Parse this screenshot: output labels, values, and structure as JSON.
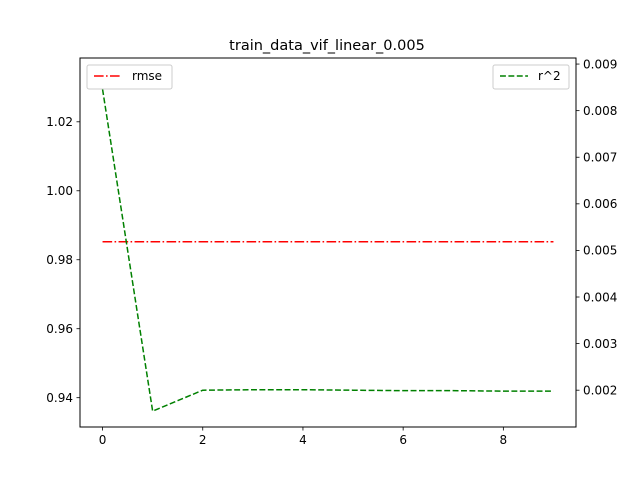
{
  "chart_data": {
    "type": "line",
    "title": "train_data_vif_linear_0.005",
    "xlabel": "",
    "ylabel": "",
    "xlim": [
      -0.45,
      9.45
    ],
    "x": [
      0,
      1,
      2,
      3,
      4,
      5,
      6,
      7,
      8,
      9
    ],
    "x_ticks": [
      0,
      2,
      4,
      6,
      8
    ],
    "left_axis": {
      "ylim": [
        0.9315,
        1.0385
      ],
      "ticks": [
        0.94,
        0.96,
        0.98,
        1.0,
        1.02
      ],
      "tick_labels": [
        "0.94",
        "0.96",
        "0.98",
        "1.00",
        "1.02"
      ]
    },
    "right_axis": {
      "ylim": [
        0.00121,
        0.00913
      ],
      "ticks": [
        0.002,
        0.003,
        0.004,
        0.005,
        0.006,
        0.007,
        0.008,
        0.009
      ],
      "tick_labels": [
        "0.002",
        "0.003",
        "0.004",
        "0.005",
        "0.006",
        "0.007",
        "0.008",
        "0.009"
      ]
    },
    "series": [
      {
        "name": "rmse",
        "axis": "left",
        "color": "#ff0000",
        "dash": "dashdot",
        "values": [
          0.9852,
          0.9852,
          0.9852,
          0.9852,
          0.9852,
          0.9852,
          0.9852,
          0.9852,
          0.9852,
          0.9852
        ]
      },
      {
        "name": "r^2",
        "axis": "right",
        "color": "#008000",
        "dash": "dashed",
        "values": [
          0.00846,
          0.00155,
          0.002,
          0.00201,
          0.00201,
          0.002,
          0.00199,
          0.00199,
          0.00198,
          0.00198
        ]
      }
    ],
    "legends": [
      {
        "axis": "left",
        "placement": "top-left",
        "entries": [
          "rmse"
        ]
      },
      {
        "axis": "right",
        "placement": "top-right",
        "entries": [
          "r^2"
        ]
      }
    ],
    "grid": false
  }
}
